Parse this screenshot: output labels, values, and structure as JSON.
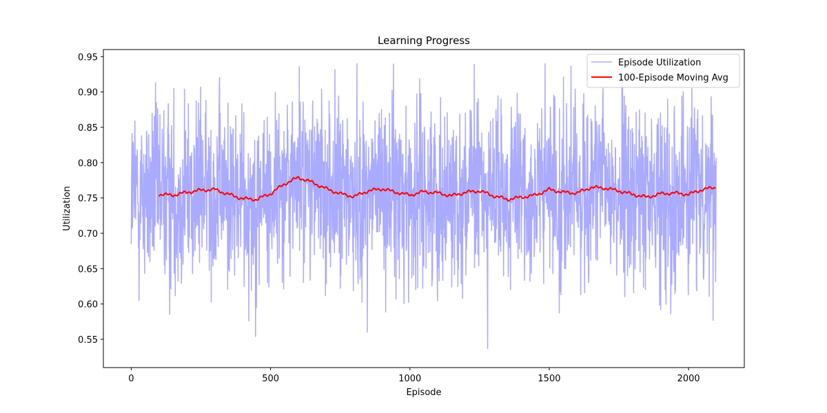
{
  "chart_data": {
    "type": "line",
    "title": "Learning Progress",
    "xlabel": "Episode",
    "ylabel": "Utilization",
    "xlim": [
      -100,
      2200
    ],
    "ylim": [
      0.51,
      0.96
    ],
    "xticks": [
      0,
      500,
      1000,
      1500,
      2000
    ],
    "yticks": [
      0.55,
      0.6,
      0.65,
      0.7,
      0.75,
      0.8,
      0.85,
      0.9,
      0.95
    ],
    "ytick_labels": [
      "0.55",
      "0.60",
      "0.65",
      "0.70",
      "0.75",
      "0.80",
      "0.85",
      "0.90",
      "0.95"
    ],
    "grid": false,
    "legend_position": "top-right",
    "series": [
      {
        "name": "Episode Utilization",
        "color": "#aaaaff",
        "episodes": {
          "start": 0,
          "end": 2099
        },
        "stats": {
          "mean": 0.758,
          "min": 0.53,
          "max": 0.94
        }
      },
      {
        "name": "100-Episode Moving Avg",
        "color": "#ff0000",
        "x": [
          99,
          150,
          200,
          250,
          300,
          350,
          400,
          450,
          500,
          550,
          600,
          650,
          700,
          750,
          800,
          850,
          900,
          950,
          1000,
          1050,
          1100,
          1150,
          1200,
          1250,
          1300,
          1350,
          1400,
          1450,
          1500,
          1550,
          1600,
          1650,
          1700,
          1750,
          1800,
          1850,
          1900,
          1950,
          2000,
          2050,
          2099
        ],
        "y": [
          0.755,
          0.754,
          0.758,
          0.761,
          0.762,
          0.755,
          0.749,
          0.748,
          0.756,
          0.77,
          0.779,
          0.772,
          0.763,
          0.756,
          0.752,
          0.76,
          0.763,
          0.758,
          0.754,
          0.759,
          0.757,
          0.753,
          0.758,
          0.76,
          0.753,
          0.748,
          0.751,
          0.754,
          0.762,
          0.758,
          0.757,
          0.765,
          0.764,
          0.76,
          0.755,
          0.751,
          0.756,
          0.757,
          0.755,
          0.762,
          0.765
        ]
      }
    ]
  }
}
